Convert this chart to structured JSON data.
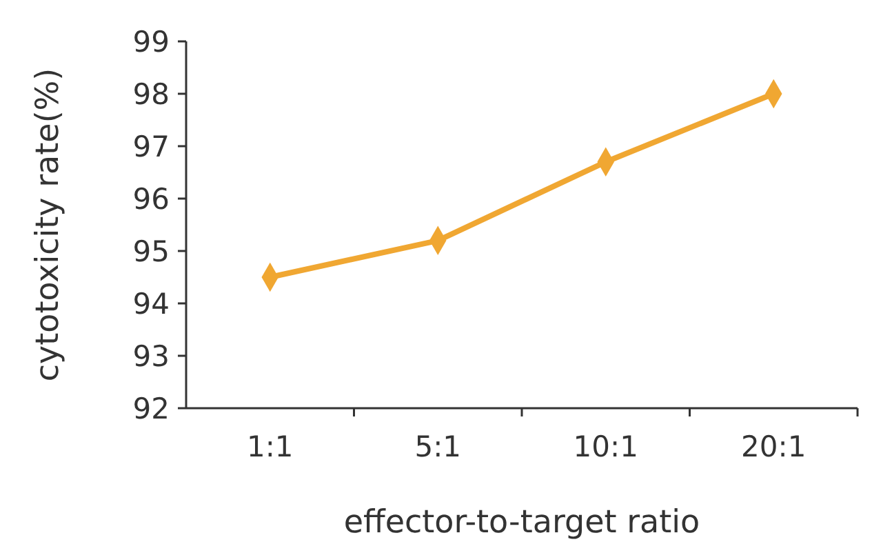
{
  "chart_data": {
    "type": "line",
    "xlabel": "effector-to-target ratio",
    "ylabel": "cytotoxicity rate(%)",
    "categories": [
      "1:1",
      "5:1",
      "10:1",
      "20:1"
    ],
    "series": [
      {
        "color": "#f0a732",
        "values": [
          94.5,
          95.2,
          96.7,
          98.0
        ]
      }
    ],
    "ylim": [
      92,
      99
    ],
    "yticks": [
      92,
      93,
      94,
      95,
      96,
      97,
      98,
      99
    ],
    "marker": "diamond",
    "grid": false
  }
}
